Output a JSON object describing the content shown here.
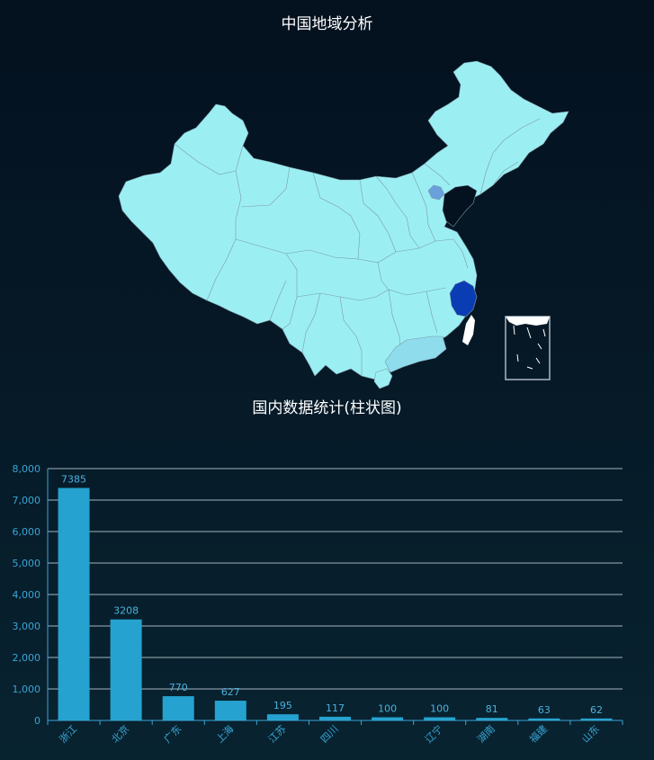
{
  "map": {
    "title": "中国地域分析",
    "colors": {
      "base": "#9beff3",
      "border": "#7d9aa8",
      "beijing": "#6aa0dc",
      "zhejiang": "#0a3cb4",
      "guangdong": "#8fdcec",
      "taiwan": "#ffffff",
      "inset_border": "#aab8c2"
    },
    "highlight_levels": {
      "浙江": 7385,
      "北京": 3208,
      "广东": 770
    }
  },
  "bar": {
    "title": "国内数据统计(柱状图)",
    "colors": {
      "bar": "#25a2cf",
      "grid": "#d8e6ee",
      "axis": "#3aa5d6",
      "label": "#4bb2de"
    }
  },
  "chart_data": {
    "type": "bar",
    "title": "国内数据统计(柱状图)",
    "categories": [
      "浙江",
      "北京",
      "广东",
      "上海",
      "江苏",
      "四川",
      "",
      "辽宁",
      "湖南",
      "福建",
      "山东"
    ],
    "values": [
      7385,
      3208,
      770,
      627,
      195,
      117,
      100,
      100,
      81,
      63,
      62
    ],
    "data_labels": [
      "7385",
      "3208",
      "770",
      "627",
      "195",
      "117",
      "100",
      "100",
      "81",
      "63",
      "62"
    ],
    "y_ticks": [
      "0",
      "1,000",
      "2,000",
      "3,000",
      "4,000",
      "5,000",
      "6,000",
      "7,000",
      "8,000"
    ],
    "ylim": [
      0,
      8000
    ],
    "grid": true,
    "xlabel": "",
    "ylabel": ""
  }
}
